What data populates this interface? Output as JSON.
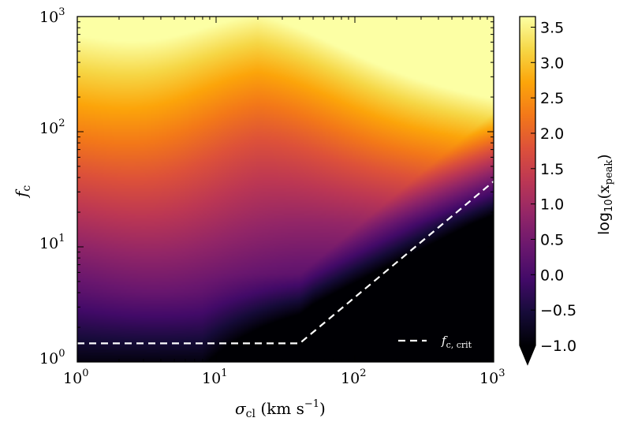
{
  "chart_data": {
    "type": "heatmap",
    "x": {
      "label_parts": [
        "σ",
        "cl",
        " (km s",
        "−1",
        ")"
      ],
      "scale": "log",
      "lim": [
        1,
        1000
      ],
      "ticks": [
        {
          "base": "10",
          "exp": "0",
          "value": 1
        },
        {
          "base": "10",
          "exp": "1",
          "value": 10
        },
        {
          "base": "10",
          "exp": "2",
          "value": 100
        },
        {
          "base": "10",
          "exp": "3",
          "value": 1000
        }
      ]
    },
    "y": {
      "label_parts": [
        "f",
        "c"
      ],
      "scale": "log",
      "lim": [
        1,
        1000
      ],
      "ticks": [
        {
          "base": "10",
          "exp": "0",
          "value": 1
        },
        {
          "base": "10",
          "exp": "1",
          "value": 10
        },
        {
          "base": "10",
          "exp": "2",
          "value": 100
        },
        {
          "base": "10",
          "exp": "3",
          "value": 1000
        }
      ]
    },
    "colorbar": {
      "label_parts": [
        "log",
        "10",
        "(x",
        "peak",
        ")"
      ],
      "colormap": "inferno",
      "range": [
        -1.0,
        3.65
      ],
      "extend": "min",
      "ticks": [
        "−1.0",
        "−0.5",
        "0.0",
        "0.5",
        "1.0",
        "1.5",
        "2.0",
        "2.5",
        "3.0",
        "3.5"
      ],
      "tick_values": [
        -1.0,
        -0.5,
        0.0,
        0.5,
        1.0,
        1.5,
        2.0,
        2.5,
        3.0,
        3.5
      ]
    },
    "series": [
      {
        "name_parts": [
          "f",
          "c, crit"
        ],
        "style": "dashed",
        "color": "#ffffff",
        "points": [
          [
            1,
            1.45
          ],
          [
            40,
            1.45
          ],
          [
            1000,
            37
          ]
        ]
      }
    ],
    "legend": {
      "placement": "lower right"
    },
    "grid": false
  }
}
